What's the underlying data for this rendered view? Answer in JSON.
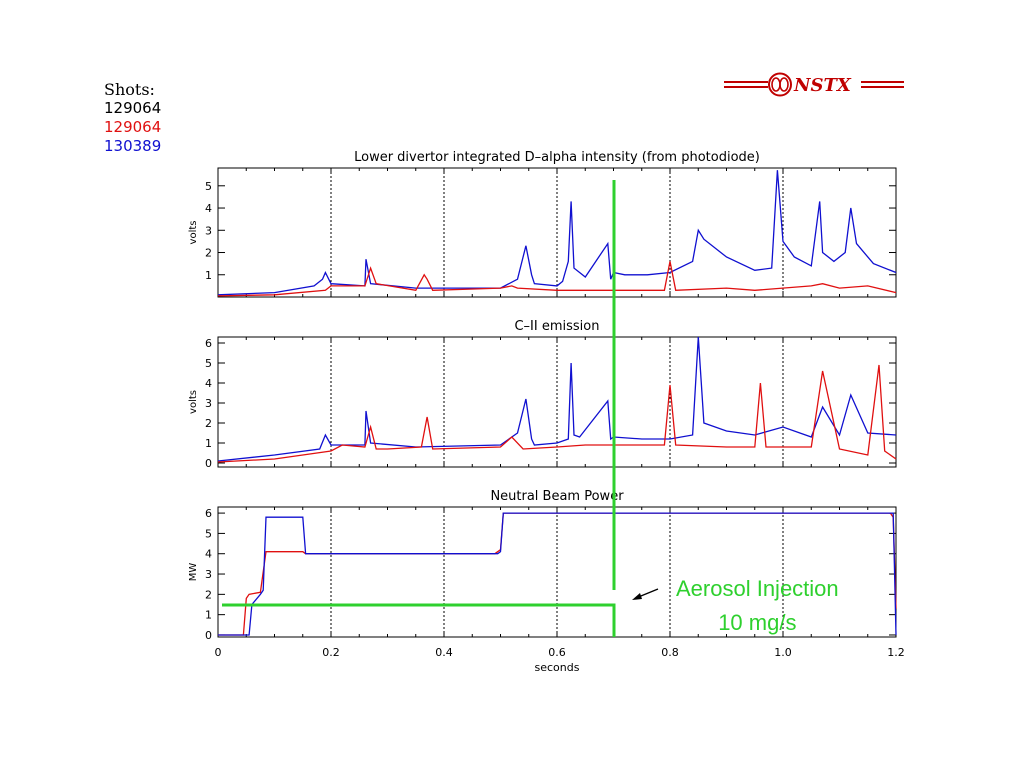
{
  "legend": {
    "heading": "Shots:",
    "shots": [
      {
        "label": "129064",
        "color": "#000000"
      },
      {
        "label": "129064",
        "color": "#e01010"
      },
      {
        "label": "130389",
        "color": "#1010d0"
      }
    ]
  },
  "logo": {
    "text": "NSTX",
    "color": "#c00000",
    "icon": "nstx-emblem-icon"
  },
  "annotation": {
    "line1": "Aerosol Injection",
    "line2": "10 mg/s",
    "color": "#2ed02e",
    "icon": "arrow-left-icon"
  },
  "x_axis": {
    "label": "seconds",
    "ticks": [
      "0",
      "0.2",
      "0.4",
      "0.6",
      "0.8",
      "1.0",
      "1.2"
    ],
    "range": [
      0,
      1.2
    ]
  },
  "chart_data": [
    {
      "type": "line",
      "title": "Lower divertor integrated D–alpha intensity (from photodiode)",
      "ylabel": "volts",
      "ylim": [
        0,
        5.8
      ],
      "yticks": [
        1,
        2,
        3,
        4,
        5
      ],
      "vlines": [
        0.2,
        0.4,
        0.6,
        0.8,
        1.0
      ],
      "series": [
        {
          "color": "#1010d0",
          "x": [
            0,
            0.1,
            0.17,
            0.185,
            0.19,
            0.2,
            0.26,
            0.262,
            0.27,
            0.35,
            0.5,
            0.53,
            0.545,
            0.555,
            0.56,
            0.6,
            0.61,
            0.62,
            0.625,
            0.63,
            0.64,
            0.65,
            0.69,
            0.695,
            0.7,
            0.72,
            0.76,
            0.8,
            0.84,
            0.85,
            0.86,
            0.9,
            0.95,
            0.98,
            0.99,
            1.0,
            1.02,
            1.05,
            1.065,
            1.07,
            1.09,
            1.11,
            1.12,
            1.13,
            1.16,
            1.2
          ],
          "y": [
            0.1,
            0.2,
            0.5,
            0.8,
            1.1,
            0.6,
            0.5,
            1.7,
            0.6,
            0.4,
            0.4,
            0.8,
            2.3,
            1.0,
            0.6,
            0.5,
            0.7,
            1.6,
            4.3,
            1.3,
            1.1,
            0.9,
            2.4,
            0.8,
            1.1,
            1.0,
            1.0,
            1.1,
            1.6,
            3.0,
            2.6,
            1.8,
            1.2,
            1.3,
            5.7,
            2.5,
            1.8,
            1.4,
            4.3,
            2.0,
            1.6,
            2.0,
            4.0,
            2.4,
            1.5,
            1.1
          ]
        },
        {
          "color": "#e01010",
          "x": [
            0,
            0.1,
            0.19,
            0.2,
            0.26,
            0.27,
            0.28,
            0.35,
            0.365,
            0.37,
            0.38,
            0.5,
            0.52,
            0.53,
            0.6,
            0.65,
            0.7,
            0.79,
            0.8,
            0.81,
            0.9,
            0.95,
            1.05,
            1.07,
            1.1,
            1.15,
            1.2
          ],
          "y": [
            0.05,
            0.1,
            0.3,
            0.5,
            0.5,
            1.3,
            0.6,
            0.3,
            1.0,
            0.8,
            0.3,
            0.4,
            0.5,
            0.4,
            0.3,
            0.3,
            0.3,
            0.3,
            1.6,
            0.3,
            0.4,
            0.3,
            0.5,
            0.6,
            0.4,
            0.5,
            0.2
          ]
        }
      ]
    },
    {
      "type": "line",
      "title": "C–II emission",
      "ylabel": "volts",
      "ylim": [
        -0.2,
        6.3
      ],
      "yticks": [
        0,
        1,
        2,
        3,
        4,
        5,
        6
      ],
      "vlines": [
        0.2,
        0.4,
        0.6,
        0.8,
        1.0
      ],
      "series": [
        {
          "color": "#1010d0",
          "x": [
            0,
            0.1,
            0.18,
            0.19,
            0.2,
            0.26,
            0.262,
            0.27,
            0.35,
            0.5,
            0.53,
            0.545,
            0.555,
            0.56,
            0.6,
            0.62,
            0.625,
            0.63,
            0.64,
            0.69,
            0.695,
            0.7,
            0.75,
            0.8,
            0.84,
            0.85,
            0.86,
            0.9,
            0.95,
            1.0,
            1.05,
            1.07,
            1.1,
            1.12,
            1.15,
            1.2
          ],
          "y": [
            0.1,
            0.4,
            0.7,
            1.4,
            0.9,
            0.9,
            2.6,
            1.0,
            0.8,
            0.9,
            1.5,
            3.2,
            1.2,
            0.9,
            1.0,
            1.2,
            5.0,
            1.4,
            1.3,
            3.1,
            1.2,
            1.3,
            1.2,
            1.2,
            1.4,
            6.3,
            2.0,
            1.6,
            1.4,
            1.8,
            1.3,
            2.8,
            1.4,
            3.4,
            1.5,
            1.4
          ]
        },
        {
          "color": "#e01010",
          "x": [
            0,
            0.1,
            0.2,
            0.22,
            0.26,
            0.27,
            0.28,
            0.3,
            0.36,
            0.37,
            0.38,
            0.5,
            0.52,
            0.54,
            0.6,
            0.65,
            0.7,
            0.79,
            0.8,
            0.81,
            0.9,
            0.95,
            0.96,
            0.97,
            1.0,
            1.05,
            1.07,
            1.1,
            1.15,
            1.17,
            1.18,
            1.2
          ],
          "y": [
            0.05,
            0.2,
            0.6,
            0.9,
            0.8,
            1.8,
            0.7,
            0.7,
            0.8,
            2.3,
            0.7,
            0.8,
            1.3,
            0.7,
            0.8,
            0.9,
            0.9,
            0.9,
            3.9,
            0.9,
            0.8,
            0.8,
            4.0,
            0.8,
            0.8,
            0.8,
            4.6,
            0.7,
            0.4,
            4.9,
            0.6,
            0.2
          ]
        }
      ]
    },
    {
      "type": "line",
      "title": "Neutral Beam Power",
      "ylabel": "MW",
      "ylim": [
        -0.1,
        6.3
      ],
      "yticks": [
        0,
        1,
        2,
        3,
        4,
        5,
        6
      ],
      "vlines": [
        0.2,
        0.4,
        0.6,
        0.8,
        1.0
      ],
      "series": [
        {
          "color": "#e01010",
          "x": [
            0,
            0.045,
            0.05,
            0.055,
            0.075,
            0.085,
            0.15,
            0.155,
            0.49,
            0.495,
            0.5,
            0.505,
            1.19,
            1.195,
            1.2
          ],
          "y": [
            0,
            0,
            1.8,
            2.0,
            2.1,
            4.1,
            4.1,
            4.0,
            4.0,
            4.1,
            4.2,
            6.0,
            6.0,
            5.8,
            1.3
          ]
        },
        {
          "color": "#1010d0",
          "x": [
            0,
            0.055,
            0.06,
            0.075,
            0.08,
            0.085,
            0.09,
            0.15,
            0.155,
            0.495,
            0.5,
            0.505,
            1.195,
            1.2
          ],
          "y": [
            0,
            0,
            1.5,
            2.0,
            2.2,
            5.8,
            5.8,
            5.8,
            4.0,
            4.0,
            4.1,
            6.0,
            6.0,
            0
          ]
        }
      ]
    }
  ]
}
